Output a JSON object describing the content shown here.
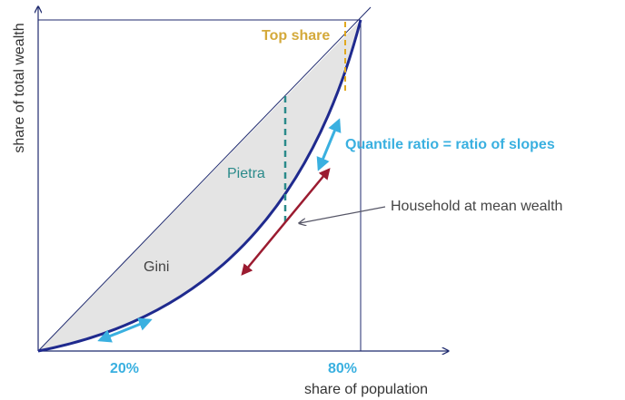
{
  "axes": {
    "y_label": "share of total wealth",
    "x_label": "share of population",
    "x_marks": [
      "20%",
      "80%"
    ]
  },
  "annotations": {
    "top_share": "Top share",
    "pietra": "Pietra",
    "quantile_ratio": "Quantile ratio = ratio of slopes",
    "mean_household": "Household at mean wealth",
    "gini": "Gini"
  }
}
